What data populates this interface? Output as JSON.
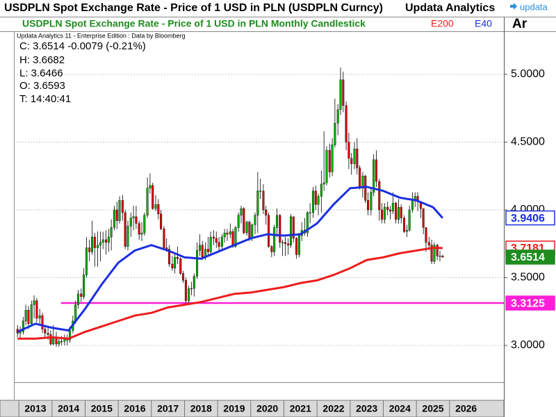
{
  "header": {
    "title": "USDPLN Spot Exchange Rate - Price of 1 USD in PLN (USDPLN Curncy)",
    "brand": "Updata Analytics",
    "logo": "updata",
    "ar": "Ar",
    "credit": "Updata Analytics 11 - Enterprise Edition : Data by Bloomberg",
    "info": [
      "C: 3.6514  -0.0079 (-0.21%)",
      "H: 3.6682",
      "L: 3.6466",
      "O: 3.6593",
      "T: 14:40:41"
    ]
  },
  "chart_data": {
    "type": "candlestick",
    "subtitle": "USDPLN Spot Exchange Rate - Price of 1 USD in PLN Monthly Candlestick",
    "up_color": "#00b000",
    "down_color": "#e00000",
    "last_price_color": "#1e8c1e",
    "xlim": [
      2012.85,
      2027.64
    ],
    "xticks": [
      2013,
      2014,
      2015,
      2016,
      2017,
      2018,
      2019,
      2020,
      2021,
      2022,
      2023,
      2024,
      2025,
      2026
    ],
    "ylim": [
      2.728,
      5.318
    ],
    "yticks": [
      {
        "value": 3,
        "label": "3.0000"
      },
      {
        "value": 3.5,
        "label": "3.5000"
      },
      {
        "value": 4,
        "label": "4.0000"
      },
      {
        "value": 4.5,
        "label": "4.5000"
      },
      {
        "value": 5,
        "label": "5.0000"
      }
    ],
    "grid": true,
    "x": [
      2012.96,
      2013.04,
      2013.13,
      2013.21,
      2013.29,
      2013.38,
      2013.46,
      2013.54,
      2013.63,
      2013.71,
      2013.79,
      2013.88,
      2013.96,
      2014.04,
      2014.13,
      2014.21,
      2014.29,
      2014.38,
      2014.46,
      2014.54,
      2014.63,
      2014.71,
      2014.79,
      2014.88,
      2014.96,
      2015.04,
      2015.13,
      2015.21,
      2015.29,
      2015.38,
      2015.46,
      2015.54,
      2015.63,
      2015.71,
      2015.79,
      2015.88,
      2015.96,
      2016.04,
      2016.13,
      2016.21,
      2016.29,
      2016.38,
      2016.46,
      2016.54,
      2016.63,
      2016.71,
      2016.79,
      2016.88,
      2016.96,
      2017.04,
      2017.13,
      2017.21,
      2017.29,
      2017.38,
      2017.46,
      2017.54,
      2017.63,
      2017.71,
      2017.79,
      2017.88,
      2017.96,
      2018.04,
      2018.13,
      2018.21,
      2018.29,
      2018.38,
      2018.46,
      2018.54,
      2018.63,
      2018.71,
      2018.79,
      2018.88,
      2018.96,
      2019.04,
      2019.13,
      2019.21,
      2019.29,
      2019.38,
      2019.46,
      2019.54,
      2019.63,
      2019.71,
      2019.79,
      2019.88,
      2019.96,
      2020.04,
      2020.13,
      2020.21,
      2020.29,
      2020.38,
      2020.46,
      2020.54,
      2020.63,
      2020.71,
      2020.79,
      2020.88,
      2020.96,
      2021.04,
      2021.13,
      2021.21,
      2021.29,
      2021.38,
      2021.46,
      2021.54,
      2021.63,
      2021.71,
      2021.79,
      2021.88,
      2021.96,
      2022.04,
      2022.13,
      2022.21,
      2022.29,
      2022.38,
      2022.46,
      2022.54,
      2022.63,
      2022.71,
      2022.79,
      2022.88,
      2022.96,
      2023.04,
      2023.13,
      2023.21,
      2023.29,
      2023.38,
      2023.46,
      2023.54,
      2023.63,
      2023.71,
      2023.79,
      2023.88,
      2023.96,
      2024.04,
      2024.13,
      2024.21,
      2024.29,
      2024.38,
      2024.46,
      2024.54,
      2024.63,
      2024.71,
      2024.79,
      2024.88,
      2024.96,
      2025.04,
      2025.13,
      2025.21,
      2025.29,
      2025.38,
      2025.46,
      2025.54,
      2025.63,
      2025.71,
      2025.79
    ],
    "open": [
      3.12,
      3.09,
      3.1,
      3.18,
      3.26,
      3.16,
      3.3,
      3.33,
      3.2,
      3.22,
      3.12,
      3.09,
      3.08,
      3.01,
      3.06,
      3.01,
      3.03,
      3.03,
      3.05,
      3.04,
      3.11,
      3.18,
      3.3,
      3.38,
      3.36,
      3.52,
      3.72,
      3.69,
      3.8,
      3.72,
      3.74,
      3.76,
      3.78,
      3.76,
      3.8,
      3.87,
      4.0,
      3.92,
      4.07,
      3.98,
      3.73,
      3.88,
      3.94,
      3.95,
      3.9,
      3.82,
      3.83,
      3.96,
      4.16,
      4.18,
      4.01,
      4.04,
      3.97,
      3.86,
      3.72,
      3.71,
      3.6,
      3.57,
      3.65,
      3.64,
      3.53,
      3.48,
      3.33,
      3.42,
      3.42,
      3.51,
      3.7,
      3.74,
      3.65,
      3.71,
      3.69,
      3.8,
      3.79,
      3.76,
      3.73,
      3.8,
      3.83,
      3.82,
      3.84,
      3.73,
      3.87,
      3.96,
      4.01,
      3.83,
      3.91,
      3.79,
      3.89,
      3.96,
      4.14,
      4.14,
      4.0,
      3.96,
      3.73,
      3.69,
      3.87,
      3.96,
      3.76,
      3.76,
      3.75,
      3.74,
      3.95,
      3.79,
      3.67,
      3.81,
      3.85,
      3.83,
      3.98,
      3.98,
      4.14,
      4.04,
      4.1,
      4.19,
      4.2,
      4.44,
      4.28,
      4.48,
      4.64,
      4.74,
      4.96,
      4.77,
      4.5,
      4.38,
      4.34,
      4.45,
      4.31,
      4.16,
      4.25,
      4.07,
      4.0,
      4.13,
      4.37,
      4.21,
      4.0,
      3.93,
      4.02,
      4.0,
      3.99,
      4.05,
      3.93,
      4.02,
      3.94,
      3.84,
      3.85,
      4.0,
      4.07,
      4.1,
      4.06,
      4.01,
      3.87,
      3.76,
      3.74,
      3.62,
      3.74,
      3.66,
      3.6593
    ],
    "high": [
      3.15,
      3.14,
      3.21,
      3.3,
      3.29,
      3.33,
      3.37,
      3.35,
      3.27,
      3.24,
      3.15,
      3.14,
      3.11,
      3.15,
      3.1,
      3.06,
      3.07,
      3.08,
      3.08,
      3.14,
      3.22,
      3.33,
      3.41,
      3.42,
      3.57,
      3.8,
      3.78,
      3.92,
      3.83,
      3.84,
      3.84,
      3.84,
      3.85,
      3.86,
      3.93,
      4.03,
      4.06,
      4.1,
      4.11,
      4.0,
      3.92,
      3.98,
      4.03,
      4.03,
      3.92,
      3.91,
      3.98,
      4.24,
      4.27,
      4.2,
      4.11,
      4.08,
      4.0,
      3.88,
      3.79,
      3.74,
      3.66,
      3.68,
      3.73,
      3.65,
      3.55,
      3.5,
      3.44,
      3.47,
      3.53,
      3.76,
      3.82,
      3.77,
      3.76,
      3.8,
      3.84,
      3.85,
      3.84,
      3.8,
      3.82,
      3.86,
      3.86,
      3.9,
      3.86,
      3.88,
      3.98,
      4.03,
      4.02,
      3.92,
      3.92,
      3.9,
      3.98,
      4.28,
      4.23,
      4.19,
      4.03,
      3.98,
      3.74,
      3.89,
      4.01,
      3.97,
      3.78,
      3.8,
      3.79,
      3.97,
      3.95,
      3.8,
      3.83,
      3.91,
      3.94,
      3.99,
      4.05,
      4.17,
      4.18,
      4.12,
      4.29,
      4.58,
      4.47,
      4.49,
      4.53,
      4.82,
      4.78,
      5.05,
      5.02,
      4.8,
      4.57,
      4.42,
      4.5,
      4.53,
      4.33,
      4.28,
      4.26,
      4.13,
      4.16,
      4.41,
      4.44,
      4.23,
      4.05,
      4.05,
      4.06,
      4.03,
      4.13,
      4.06,
      4.08,
      4.04,
      3.96,
      3.89,
      4.03,
      4.13,
      4.13,
      4.13,
      4.06,
      4.0,
      3.87,
      3.8,
      3.78,
      3.76,
      3.75,
      3.7,
      3.6682
    ],
    "low": [
      3.06,
      3.05,
      3.08,
      3.15,
      3.12,
      3.14,
      3.2,
      3.17,
      3.15,
      3.09,
      3.05,
      3.04,
      3.0,
      3.0,
      2.99,
      2.99,
      3.0,
      3.0,
      3.0,
      3.02,
      3.09,
      3.16,
      3.27,
      3.32,
      3.34,
      3.5,
      3.62,
      3.67,
      3.58,
      3.58,
      3.62,
      3.71,
      3.67,
      3.69,
      3.7,
      3.85,
      3.86,
      3.9,
      3.92,
      3.71,
      3.7,
      3.8,
      3.85,
      3.86,
      3.78,
      3.77,
      3.81,
      3.94,
      4.12,
      4.0,
      3.99,
      3.93,
      3.85,
      3.71,
      3.69,
      3.58,
      3.55,
      3.53,
      3.6,
      3.52,
      3.46,
      3.31,
      3.31,
      3.37,
      3.36,
      3.49,
      3.66,
      3.63,
      3.63,
      3.66,
      3.66,
      3.74,
      3.72,
      3.69,
      3.7,
      3.76,
      3.77,
      3.79,
      3.72,
      3.72,
      3.84,
      3.9,
      3.82,
      3.81,
      3.77,
      3.77,
      3.82,
      3.83,
      4.08,
      3.97,
      3.89,
      3.72,
      3.65,
      3.66,
      3.8,
      3.72,
      3.66,
      3.66,
      3.67,
      3.72,
      3.76,
      3.64,
      3.65,
      3.77,
      3.81,
      3.8,
      3.9,
      3.94,
      4.0,
      3.96,
      3.98,
      4.14,
      4.18,
      4.24,
      4.25,
      4.46,
      4.55,
      4.7,
      4.72,
      4.44,
      4.3,
      4.26,
      4.3,
      4.26,
      4.15,
      4.09,
      4.05,
      3.96,
      3.96,
      4.1,
      4.17,
      3.92,
      3.9,
      3.9,
      3.96,
      3.93,
      3.97,
      3.9,
      3.9,
      3.9,
      3.83,
      3.8,
      3.84,
      3.98,
      4.02,
      3.99,
      3.94,
      3.82,
      3.69,
      3.7,
      3.6,
      3.6,
      3.63,
      3.62,
      3.6466
    ],
    "close": [
      3.09,
      3.1,
      3.18,
      3.26,
      3.16,
      3.3,
      3.33,
      3.2,
      3.22,
      3.12,
      3.09,
      3.08,
      3.01,
      3.06,
      3.01,
      3.03,
      3.03,
      3.05,
      3.04,
      3.11,
      3.18,
      3.3,
      3.38,
      3.36,
      3.52,
      3.72,
      3.69,
      3.8,
      3.72,
      3.74,
      3.76,
      3.78,
      3.76,
      3.8,
      3.87,
      4.0,
      3.92,
      4.07,
      3.98,
      3.73,
      3.88,
      3.94,
      3.95,
      3.9,
      3.82,
      3.83,
      3.96,
      4.16,
      4.18,
      4.01,
      4.04,
      3.97,
      3.86,
      3.72,
      3.71,
      3.6,
      3.57,
      3.65,
      3.64,
      3.53,
      3.48,
      3.33,
      3.42,
      3.42,
      3.51,
      3.7,
      3.74,
      3.65,
      3.71,
      3.69,
      3.8,
      3.79,
      3.76,
      3.73,
      3.8,
      3.83,
      3.82,
      3.84,
      3.73,
      3.87,
      3.96,
      4.01,
      3.83,
      3.91,
      3.79,
      3.89,
      3.96,
      4.14,
      4.14,
      4.0,
      3.96,
      3.73,
      3.69,
      3.87,
      3.96,
      3.76,
      3.76,
      3.75,
      3.74,
      3.95,
      3.79,
      3.67,
      3.81,
      3.85,
      3.83,
      3.98,
      3.98,
      4.14,
      4.04,
      4.1,
      4.19,
      4.2,
      4.44,
      4.28,
      4.48,
      4.64,
      4.74,
      4.96,
      4.77,
      4.5,
      4.38,
      4.34,
      4.45,
      4.31,
      4.16,
      4.25,
      4.07,
      4.0,
      4.13,
      4.37,
      4.21,
      4.0,
      3.93,
      4.02,
      4.0,
      3.99,
      4.05,
      3.93,
      4.02,
      3.94,
      3.84,
      3.85,
      4.0,
      4.07,
      4.1,
      4.06,
      4.01,
      3.87,
      3.76,
      3.74,
      3.62,
      3.74,
      3.66,
      3.6593,
      3.6514
    ],
    "lines": [
      {
        "name": "E200",
        "color": "#ee1c1c",
        "x": [
          2012.96,
          2013.5,
          2014.0,
          2014.5,
          2015.0,
          2015.5,
          2016.0,
          2016.5,
          2017.0,
          2017.5,
          2018.0,
          2018.5,
          2019.0,
          2019.5,
          2020.0,
          2020.5,
          2021.0,
          2021.5,
          2022.0,
          2022.5,
          2023.0,
          2023.5,
          2024.0,
          2024.5,
          2025.0,
          2025.5,
          2025.79
        ],
        "values": [
          3.05,
          3.05,
          3.06,
          3.05,
          3.1,
          3.14,
          3.18,
          3.22,
          3.24,
          3.28,
          3.3,
          3.32,
          3.35,
          3.38,
          3.39,
          3.41,
          3.43,
          3.46,
          3.48,
          3.52,
          3.57,
          3.63,
          3.65,
          3.68,
          3.7,
          3.72,
          3.7181
        ]
      },
      {
        "name": "E40",
        "color": "#1a2ee0",
        "x": [
          2012.96,
          2013.5,
          2014.0,
          2014.5,
          2015.0,
          2015.5,
          2016.0,
          2016.5,
          2017.0,
          2017.5,
          2018.0,
          2018.5,
          2019.0,
          2019.5,
          2020.0,
          2020.5,
          2021.0,
          2021.5,
          2022.0,
          2022.5,
          2023.0,
          2023.5,
          2024.0,
          2024.5,
          2025.0,
          2025.5,
          2025.79
        ],
        "values": [
          3.1,
          3.16,
          3.13,
          3.11,
          3.27,
          3.45,
          3.61,
          3.7,
          3.74,
          3.7,
          3.65,
          3.64,
          3.69,
          3.74,
          3.79,
          3.82,
          3.81,
          3.82,
          3.9,
          4.04,
          4.16,
          4.17,
          4.14,
          4.09,
          4.07,
          4.02,
          3.9406
        ]
      }
    ],
    "hline": {
      "value": 3.3125,
      "x_start": 2014.27,
      "color": "#ff1fd8"
    }
  }
}
